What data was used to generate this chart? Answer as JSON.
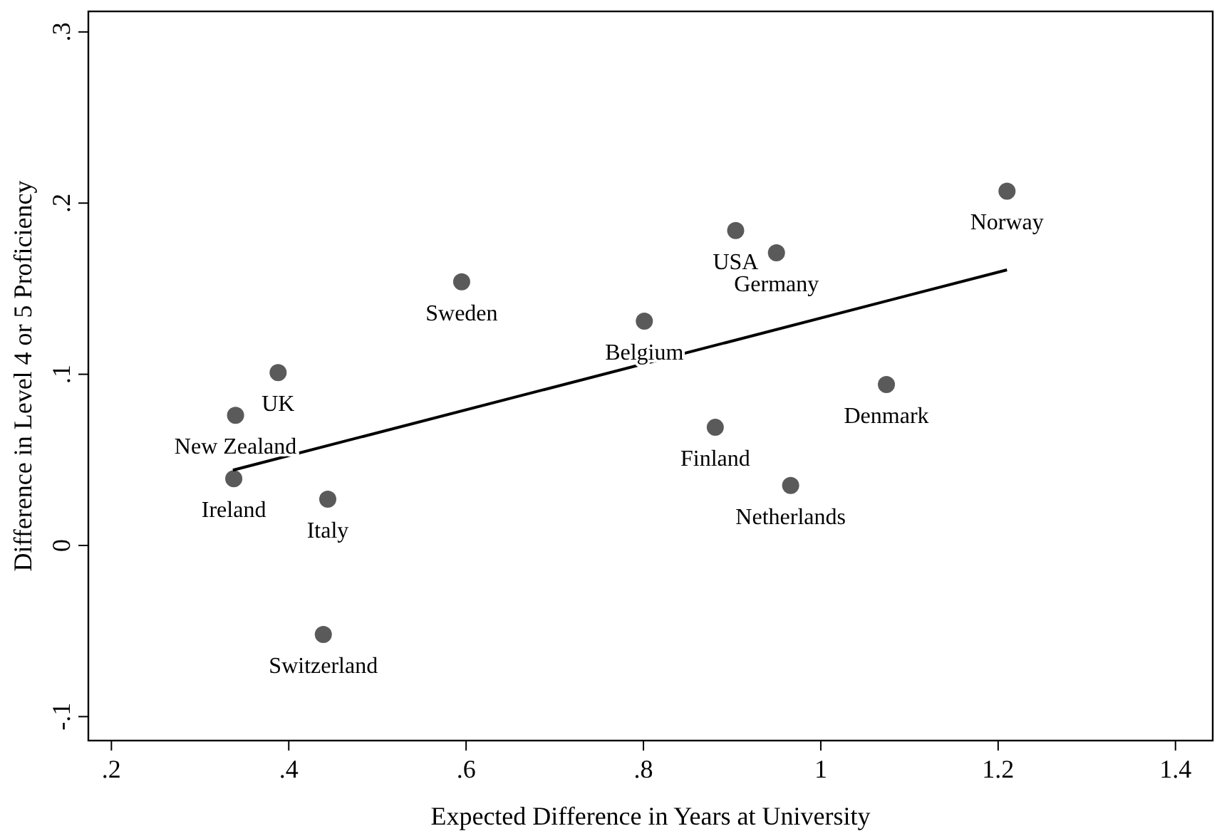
{
  "chart_data": {
    "type": "scatter",
    "xlabel": "Expected Difference in Years at University",
    "ylabel": "Difference in Level 4 or 5 Proficiency",
    "xlim": [
      0.174,
      1.442
    ],
    "ylim": [
      -0.114,
      0.312
    ],
    "xticks": [
      {
        "value": 0.2,
        "label": ".2"
      },
      {
        "value": 0.4,
        "label": ".4"
      },
      {
        "value": 0.6,
        "label": ".6"
      },
      {
        "value": 0.8,
        "label": ".8"
      },
      1,
      1.2,
      1.4
    ],
    "yticks": [
      {
        "value": -0.1,
        "label": "-.1"
      },
      0,
      {
        "value": 0.1,
        "label": ".1"
      },
      {
        "value": 0.2,
        "label": ".2"
      },
      {
        "value": 0.3,
        "label": ".3"
      }
    ],
    "grid": false,
    "marker": "circle",
    "series": [
      {
        "color": "#5a5a5a",
        "x": [
          0.388,
          0.34,
          0.338,
          0.444,
          0.439,
          0.595,
          0.801,
          0.904,
          0.95,
          1.21,
          1.074,
          0.881,
          0.966
        ],
        "values": [
          0.101,
          0.076,
          0.039,
          0.027,
          -0.052,
          0.154,
          0.131,
          0.184,
          0.171,
          0.207,
          0.094,
          0.069,
          0.035
        ]
      },
      {
        "type": "line",
        "marker": "none",
        "color": "#000000",
        "x": [
          0.337,
          1.21
        ],
        "values": [
          0.044,
          0.161
        ]
      }
    ],
    "annotations": [
      {
        "text": "UK",
        "x": 0.388,
        "y": 0.101
      },
      {
        "text": "New Zealand",
        "x": 0.34,
        "y": 0.076
      },
      {
        "text": "Ireland",
        "x": 0.338,
        "y": 0.039
      },
      {
        "text": "Italy",
        "x": 0.444,
        "y": 0.027
      },
      {
        "text": "Switzerland",
        "x": 0.439,
        "y": -0.052
      },
      {
        "text": "Sweden",
        "x": 0.595,
        "y": 0.154
      },
      {
        "text": "Belgium",
        "x": 0.801,
        "y": 0.131
      },
      {
        "text": "USA",
        "x": 0.904,
        "y": 0.184
      },
      {
        "text": "Germany",
        "x": 0.95,
        "y": 0.171
      },
      {
        "text": "Norway",
        "x": 1.21,
        "y": 0.207
      },
      {
        "text": "Denmark",
        "x": 1.074,
        "y": 0.094
      },
      {
        "text": "Finland",
        "x": 0.881,
        "y": 0.069
      },
      {
        "text": "Netherlands",
        "x": 0.966,
        "y": 0.035
      }
    ]
  }
}
